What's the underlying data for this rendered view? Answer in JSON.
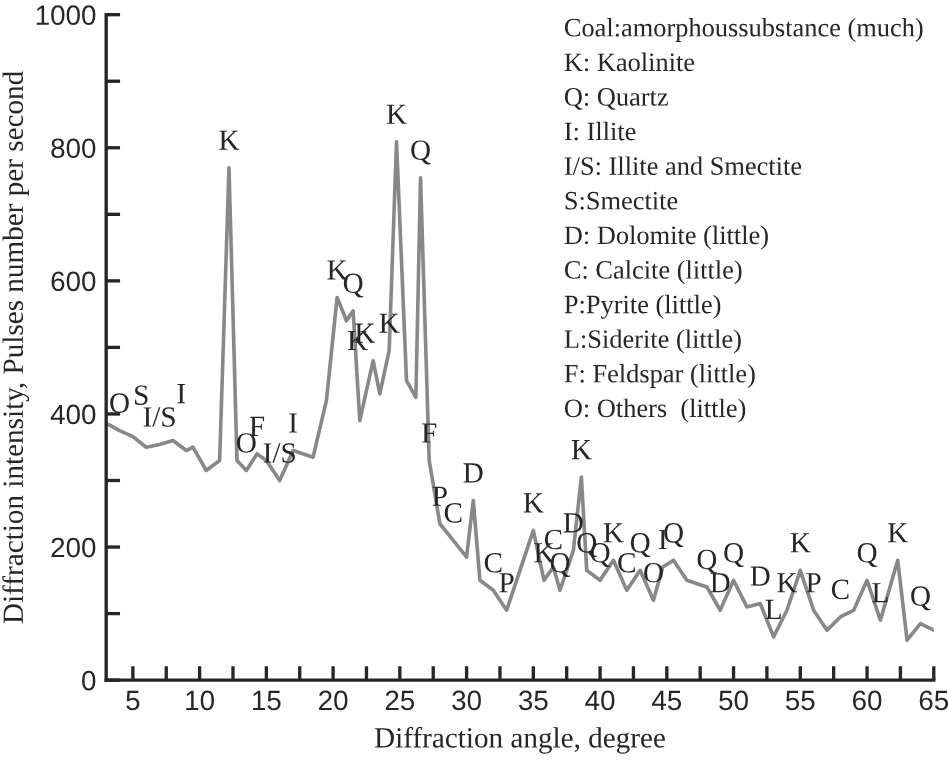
{
  "chart_data": {
    "type": "line",
    "xlabel": "Diffraction angle, degree",
    "ylabel": "Diffraction intensity, Pulses number per second",
    "x": [
      3.2,
      4,
      5,
      6,
      7,
      8,
      9,
      9.5,
      10.5,
      11.5,
      12.2,
      12.8,
      13.5,
      14.3,
      15,
      16,
      17,
      18.5,
      19.5,
      20.3,
      21,
      21.5,
      22,
      23,
      23.5,
      24.2,
      24.75,
      25.5,
      26.2,
      26.55,
      27.2,
      28,
      29,
      30,
      30.5,
      31,
      32,
      33,
      34,
      35,
      35.8,
      36.5,
      37,
      38,
      38.6,
      39,
      40,
      41,
      42,
      43,
      44,
      44.7,
      45.5,
      46.5,
      48,
      49,
      50,
      51,
      52,
      53,
      54,
      55,
      56,
      57,
      58,
      59,
      60,
      61,
      62.3,
      63,
      64,
      65
    ],
    "series": [
      {
        "color": "#888888",
        "values": [
          384,
          375,
          366,
          350,
          354,
          360,
          345,
          350,
          315,
          330,
          770,
          330,
          315,
          340,
          330,
          300,
          345,
          335,
          420,
          575,
          540,
          555,
          390,
          480,
          430,
          495,
          809,
          450,
          425,
          755,
          330,
          235,
          210,
          185,
          270,
          150,
          135,
          105,
          165,
          225,
          150,
          170,
          135,
          195,
          305,
          165,
          150,
          180,
          135,
          165,
          120,
          170,
          180,
          150,
          140,
          105,
          150,
          110,
          115,
          65,
          105,
          165,
          105,
          75,
          95,
          105,
          150,
          90,
          180,
          60,
          85,
          75
        ]
      }
    ],
    "xlim": [
      3,
      65
    ],
    "xticks": [
      5,
      {
        "value": 7.5,
        "label": null
      },
      10,
      {
        "value": 12.5,
        "label": null
      },
      15,
      {
        "value": 17.5,
        "label": null
      },
      20,
      {
        "value": 22.5,
        "label": null
      },
      25,
      {
        "value": 27.5,
        "label": null
      },
      30,
      {
        "value": 32.5,
        "label": null
      },
      35,
      {
        "value": 37.5,
        "label": null
      },
      40,
      {
        "value": 42.5,
        "label": null
      },
      45,
      {
        "value": 47.5,
        "label": null
      },
      50,
      {
        "value": 52.5,
        "label": null
      },
      55,
      {
        "value": 57.5,
        "label": null
      },
      60,
      {
        "value": 62.5,
        "label": null
      },
      65
    ],
    "ylim": [
      0,
      1000
    ],
    "yticks": [
      0,
      {
        "value": 100,
        "label": null
      },
      200,
      {
        "value": 300,
        "label": null
      },
      400,
      {
        "value": 500,
        "label": null
      },
      600,
      {
        "value": 700,
        "label": null
      },
      800,
      {
        "value": 900,
        "label": null
      },
      1000
    ],
    "grid": false,
    "annotations": [
      "Coal:amorphoussubstance (much)",
      "K: Kaolinite",
      "Q: Quartz",
      "I: Illite",
      "I/S: Illite and Smectite",
      "S:Smectite",
      "D: Dolomite (little)",
      "C: Calcite (little)",
      "P:Pyrite (little)",
      "L:Siderite (little)",
      "F: Feldspar (little)",
      "O: Others  (little)",
      {
        "text": "O",
        "x": 4,
        "y": 375
      },
      {
        "text": "S",
        "x": 5,
        "y": 366
      },
      {
        "text": "I/S",
        "x": 7,
        "y": 354
      },
      {
        "text": "I",
        "x": 8,
        "y": 360
      },
      {
        "text": "K",
        "x": 12.2,
        "y": 770
      },
      {
        "text": "O",
        "x": 13.5,
        "y": 315
      },
      {
        "text": "F",
        "x": 14.3,
        "y": 340
      },
      {
        "text": "I/S",
        "x": 16,
        "y": 300
      },
      {
        "text": "I",
        "x": 17,
        "y": 345
      },
      {
        "text": "K",
        "x": 20.3,
        "y": 575
      },
      {
        "text": "Q",
        "x": 21.5,
        "y": 555
      },
      {
        "text": "K",
        "x": 21,
        "y": 540
      },
      {
        "text": "K",
        "x": 23,
        "y": 480
      },
      {
        "text": "K",
        "x": 24.2,
        "y": 495
      },
      {
        "text": "K",
        "x": 24.75,
        "y": 809
      },
      {
        "text": "Q",
        "x": 26.55,
        "y": 755
      },
      {
        "text": "F",
        "x": 27.2,
        "y": 330
      },
      {
        "text": "P",
        "x": 28,
        "y": 235
      },
      {
        "text": "C",
        "x": 29,
        "y": 210
      },
      {
        "text": "D",
        "x": 30.5,
        "y": 270
      },
      {
        "text": "C",
        "x": 32,
        "y": 135
      },
      {
        "text": "P",
        "x": 33,
        "y": 105
      },
      {
        "text": "K",
        "x": 35,
        "y": 225
      },
      {
        "text": "C",
        "x": 36.5,
        "y": 170
      },
      {
        "text": "K",
        "x": 35.8,
        "y": 150
      },
      {
        "text": "Q",
        "x": 37,
        "y": 135
      },
      {
        "text": "D",
        "x": 38,
        "y": 195
      },
      {
        "text": "K",
        "x": 38.6,
        "y": 305
      },
      {
        "text": "Q",
        "x": 39,
        "y": 165
      },
      {
        "text": "Q",
        "x": 40,
        "y": 150
      },
      {
        "text": "K",
        "x": 41,
        "y": 180
      },
      {
        "text": "Q",
        "x": 43,
        "y": 165
      },
      {
        "text": "C",
        "x": 42,
        "y": 135
      },
      {
        "text": "O",
        "x": 44,
        "y": 120
      },
      {
        "text": "I",
        "x": 44.7,
        "y": 170
      },
      {
        "text": "Q",
        "x": 45.5,
        "y": 180
      },
      {
        "text": "Q",
        "x": 48,
        "y": 140
      },
      {
        "text": "D",
        "x": 49,
        "y": 105
      },
      {
        "text": "Q",
        "x": 50,
        "y": 150
      },
      {
        "text": "D",
        "x": 52,
        "y": 115
      },
      {
        "text": "L",
        "x": 53,
        "y": 65
      },
      {
        "text": "K",
        "x": 54,
        "y": 105
      },
      {
        "text": "K",
        "x": 55,
        "y": 165
      },
      {
        "text": "P",
        "x": 56,
        "y": 105
      },
      {
        "text": "C",
        "x": 58,
        "y": 95
      },
      {
        "text": "Q",
        "x": 60,
        "y": 150
      },
      {
        "text": "L",
        "x": 61,
        "y": 90
      },
      {
        "text": "K",
        "x": 62.3,
        "y": 180
      },
      {
        "text": "Q",
        "x": 64,
        "y": 85
      }
    ]
  }
}
